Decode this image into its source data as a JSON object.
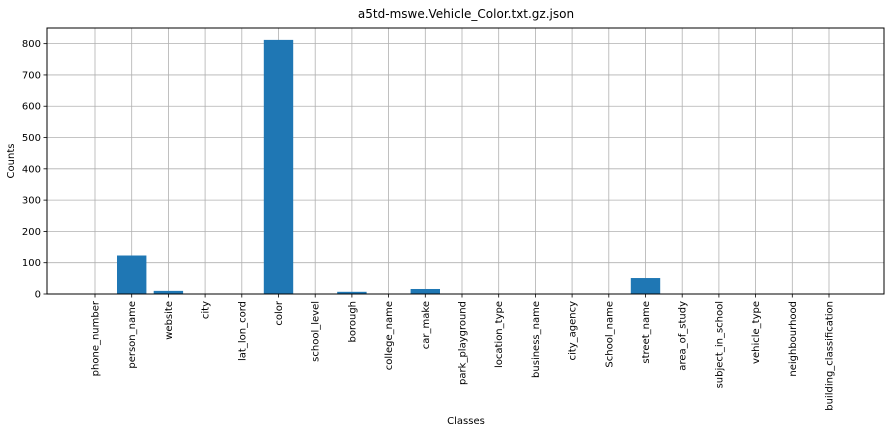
{
  "chart_data": {
    "type": "bar",
    "title": "a5td-mswe.Vehicle_Color.txt.gz.json",
    "xlabel": "Classes",
    "ylabel": "Counts",
    "categories": [
      "phone_number",
      "person_name",
      "website",
      "city",
      "lat_lon_cord",
      "color",
      "school_level",
      "borough",
      "college_name",
      "car_make",
      "park_playground",
      "location_type",
      "business_name",
      "city_agency",
      "School_name",
      "street_name",
      "area_of_study",
      "subject_in_school",
      "vehicle_type",
      "neighbourhood",
      "building_classification"
    ],
    "values": [
      0,
      123,
      10,
      0,
      0,
      812,
      0,
      7,
      0,
      16,
      0,
      0,
      0,
      0,
      0,
      51,
      0,
      0,
      0,
      0,
      0
    ],
    "ylim": [
      0,
      850
    ],
    "yticks": [
      0,
      100,
      200,
      300,
      400,
      500,
      600,
      700,
      800
    ],
    "grid": true,
    "bar_color": "#1f77b4"
  }
}
